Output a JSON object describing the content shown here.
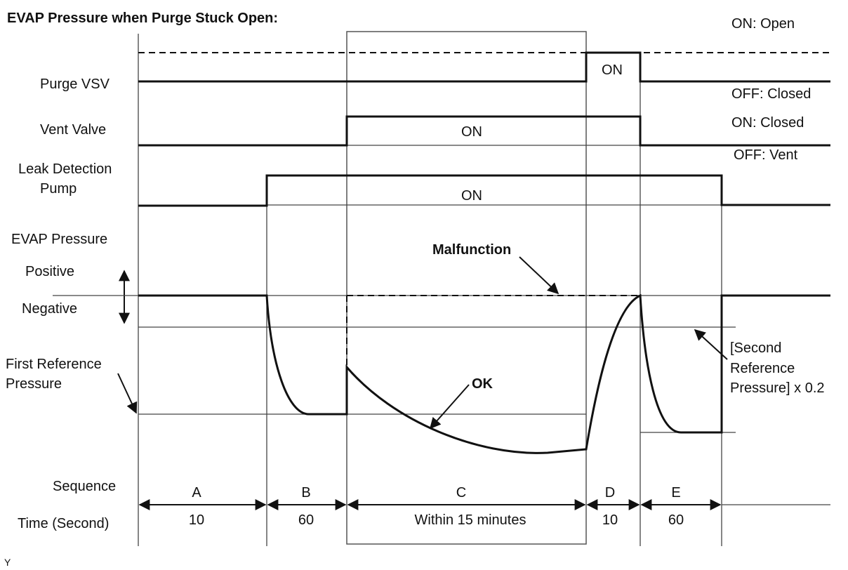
{
  "title": "EVAP Pressure when Purge Stuck Open:",
  "signals": {
    "purge_vsv": "Purge VSV",
    "vent_valve": "Vent Valve",
    "pump_line1": "Leak Detection",
    "pump_line2": "Pump",
    "evap_pressure": "EVAP Pressure"
  },
  "legend": {
    "purge_on": "ON: Open",
    "purge_off": "OFF: Closed",
    "vent_on": "ON: Closed",
    "vent_off": "OFF: Vent"
  },
  "on_labels": {
    "purge": "ON",
    "vent": "ON",
    "pump": "ON"
  },
  "pressure": {
    "positive": "Positive",
    "negative": "Negative",
    "first_ref_line1": "First Reference",
    "first_ref_line2": "Pressure",
    "malfunction": "Malfunction",
    "ok": "OK",
    "second_ref_line1": "[Second",
    "second_ref_line2": "Reference",
    "second_ref_line3": "Pressure] x 0.2"
  },
  "sequence": {
    "label": "Sequence",
    "steps": [
      "A",
      "B",
      "C",
      "D",
      "E"
    ]
  },
  "time": {
    "label": "Time (Second)",
    "values": [
      "10",
      "60",
      "Within 15 minutes",
      "10",
      "60"
    ]
  },
  "footer": "Y"
}
